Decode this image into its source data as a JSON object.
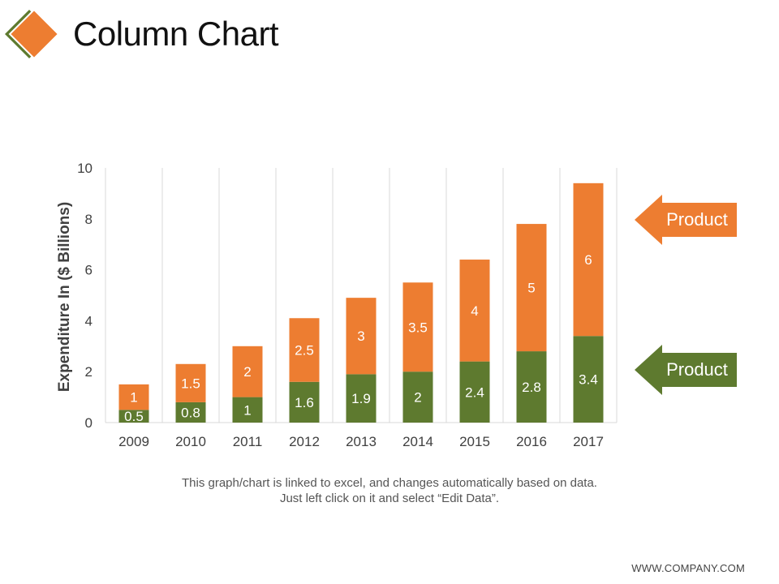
{
  "slide": {
    "title": "Column Chart",
    "caption_line1": "This graph/chart is linked to excel, and changes automatically based on data.",
    "caption_line2": "Just left click on it and select “Edit Data”.",
    "footer": "WWW.COMPANY.COM"
  },
  "colors": {
    "orange": "#ED7D31",
    "green": "#5E7A2F",
    "grid": "#D9D9D9",
    "axis_text": "#404040"
  },
  "callouts": [
    {
      "label": "Product",
      "series_index": 1
    },
    {
      "label": "Product",
      "series_index": 0
    }
  ],
  "chart_data": {
    "type": "bar",
    "stacked": true,
    "categories": [
      "2009",
      "2010",
      "2011",
      "2012",
      "2013",
      "2014",
      "2015",
      "2016",
      "2017"
    ],
    "series": [
      {
        "color": "#5E7A2F",
        "values": [
          0.5,
          0.8,
          1,
          1.6,
          1.9,
          2,
          2.4,
          2.8,
          3.4
        ]
      },
      {
        "color": "#ED7D31",
        "values": [
          1,
          1.5,
          2,
          2.5,
          3,
          3.5,
          4,
          5,
          6
        ]
      }
    ],
    "ylabel": "Expenditure In ($ Billions)",
    "ylim": [
      0,
      10
    ],
    "yticks": [
      0,
      2,
      4,
      6,
      8,
      10
    ],
    "grid": "vertical",
    "legend": "callout arrows at right"
  }
}
